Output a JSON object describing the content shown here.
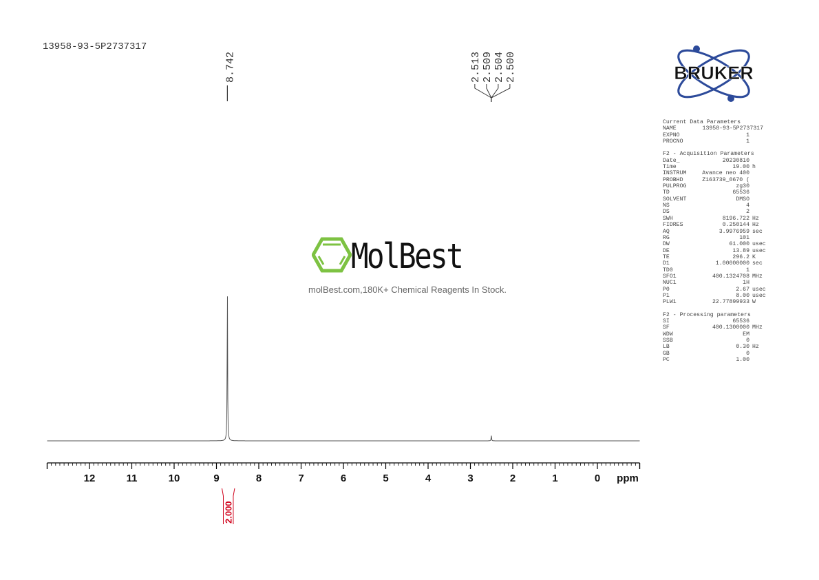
{
  "sample_name": "13958-93-5P2737317",
  "watermark": {
    "brand": "MolBest",
    "tagline": "molBest.com,180K+ Chemical Reagents In Stock.",
    "color": "#7dc242"
  },
  "logo": {
    "text": "BRUKER",
    "color": "#2c4a9a"
  },
  "parameters": {
    "current": {
      "title": "Current Data Parameters",
      "rows": [
        {
          "k": "NAME",
          "v": "13958-93-5P2737317",
          "u": ""
        },
        {
          "k": "EXPNO",
          "v": "1",
          "u": ""
        },
        {
          "k": "PROCNO",
          "v": "1",
          "u": ""
        }
      ]
    },
    "acquisition": {
      "title": "F2 - Acquisition Parameters",
      "rows": [
        {
          "k": "Date_",
          "v": "20230810",
          "u": ""
        },
        {
          "k": "Time",
          "v": "19.00",
          "u": "h"
        },
        {
          "k": "INSTRUM",
          "v": "Avance neo 400",
          "u": ""
        },
        {
          "k": "PROBHD",
          "v": "Z163739_0670 (",
          "u": ""
        },
        {
          "k": "PULPROG",
          "v": "zg30",
          "u": ""
        },
        {
          "k": "TD",
          "v": "65536",
          "u": ""
        },
        {
          "k": "SOLVENT",
          "v": "DMSO",
          "u": ""
        },
        {
          "k": "NS",
          "v": "4",
          "u": ""
        },
        {
          "k": "DS",
          "v": "2",
          "u": ""
        },
        {
          "k": "SWH",
          "v": "8196.722",
          "u": "Hz"
        },
        {
          "k": "FIDRES",
          "v": "0.250144",
          "u": "Hz"
        },
        {
          "k": "AQ",
          "v": "3.9976959",
          "u": "sec"
        },
        {
          "k": "RG",
          "v": "101",
          "u": ""
        },
        {
          "k": "DW",
          "v": "61.000",
          "u": "usec"
        },
        {
          "k": "DE",
          "v": "13.89",
          "u": "usec"
        },
        {
          "k": "TE",
          "v": "296.2",
          "u": "K"
        },
        {
          "k": "D1",
          "v": "1.00000000",
          "u": "sec"
        },
        {
          "k": "TD0",
          "v": "1",
          "u": ""
        },
        {
          "k": "SFO1",
          "v": "400.1324708",
          "u": "MHz"
        },
        {
          "k": "NUC1",
          "v": "1H",
          "u": ""
        },
        {
          "k": "P0",
          "v": "2.67",
          "u": "usec"
        },
        {
          "k": "P1",
          "v": "8.00",
          "u": "usec"
        },
        {
          "k": "PLW1",
          "v": "22.77899933",
          "u": "W"
        }
      ]
    },
    "processing": {
      "title": "F2 - Processing parameters",
      "rows": [
        {
          "k": "SI",
          "v": "65536",
          "u": ""
        },
        {
          "k": "SF",
          "v": "400.1300000",
          "u": "MHz"
        },
        {
          "k": "WDW",
          "v": "EM",
          "u": ""
        },
        {
          "k": "SSB",
          "v": "0",
          "u": ""
        },
        {
          "k": "LB",
          "v": "0.30",
          "u": "Hz"
        },
        {
          "k": "GB",
          "v": "0",
          "u": ""
        },
        {
          "k": "PC",
          "v": "1.00",
          "u": ""
        }
      ]
    }
  },
  "chart_data": {
    "type": "line",
    "xlabel": "ppm",
    "xlim": [
      13.0,
      -1.0
    ],
    "x_reversed": true,
    "grid": false,
    "xticks": [
      "12",
      "11",
      "10",
      "9",
      "8",
      "7",
      "6",
      "5",
      "4",
      "3",
      "2",
      "1",
      "0"
    ],
    "peaks": [
      {
        "ppm": 8.742,
        "relative_height": 1.0
      },
      {
        "ppm": 2.506,
        "relative_height": 0.035
      }
    ],
    "peak_labels": [
      {
        "group": [
          "8.742"
        ],
        "ppm": 8.742
      },
      {
        "group": [
          "2.513",
          "2.509",
          "2.504",
          "2.500"
        ],
        "ppm": 2.506
      }
    ],
    "integrals": [
      {
        "from": 8.87,
        "to": 8.57,
        "value": "2.000",
        "color": "#d0021b"
      }
    ]
  }
}
